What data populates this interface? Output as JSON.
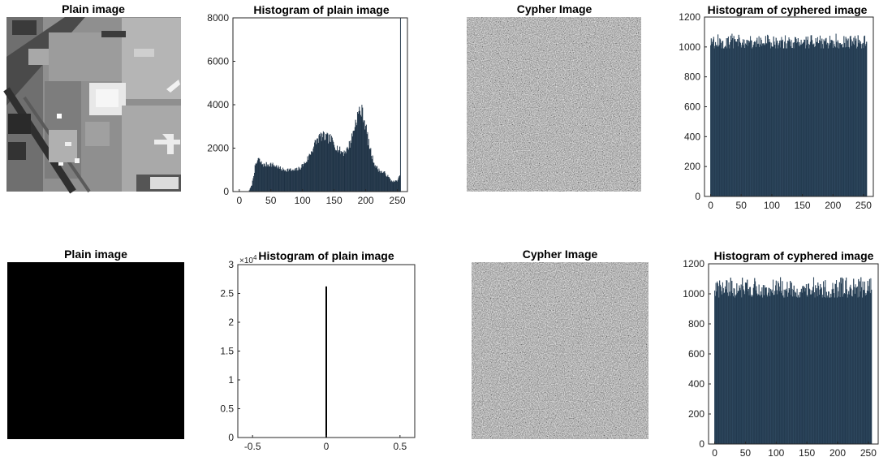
{
  "figure": {
    "panels": [
      {
        "kind": "image",
        "title": "Plain image",
        "content": "aerial-airport-grayscale-photo"
      },
      {
        "kind": "histogram",
        "title": "Histogram of plain image"
      },
      {
        "kind": "image",
        "title": "Cypher Image",
        "content": "random-noise"
      },
      {
        "kind": "histogram",
        "title": "Histogram of cyphered image"
      },
      {
        "kind": "image",
        "title": "Plain image",
        "content": "all-black"
      },
      {
        "kind": "histogram",
        "title": "Histogram of plain image"
      },
      {
        "kind": "image",
        "title": "Cypher Image",
        "content": "random-noise"
      },
      {
        "kind": "histogram",
        "title": "Histogram of cyphered image"
      }
    ],
    "colors": {
      "bar": "#1f3346",
      "axis": "#262626",
      "black_image": "#000000"
    }
  },
  "chart_data": [
    {
      "type": "bar",
      "title": "Histogram of plain image",
      "xlabel": "",
      "ylabel": "",
      "xlim": [
        -10,
        266
      ],
      "ylim": [
        0,
        8000
      ],
      "xticks": [
        0,
        50,
        100,
        150,
        200,
        250
      ],
      "yticks": [
        0,
        2000,
        4000,
        6000,
        8000
      ],
      "xtick_labels": [
        "0",
        "50",
        "100",
        "150",
        "200",
        "250"
      ],
      "ytick_labels": [
        "0",
        "2000",
        "4000",
        "6000",
        "8000"
      ],
      "grid": false,
      "bins": "0-255",
      "profile_x": [
        0,
        5,
        10,
        15,
        20,
        25,
        30,
        35,
        40,
        45,
        50,
        55,
        60,
        65,
        70,
        75,
        80,
        85,
        90,
        95,
        100,
        105,
        110,
        115,
        120,
        125,
        130,
        135,
        140,
        145,
        150,
        155,
        160,
        165,
        170,
        175,
        180,
        185,
        190,
        195,
        200,
        205,
        210,
        215,
        220,
        225,
        230,
        235,
        240,
        245,
        250,
        254,
        255
      ],
      "profile_y": [
        0,
        0,
        0,
        0,
        300,
        1100,
        1500,
        1300,
        1200,
        1250,
        1250,
        1200,
        1150,
        1050,
        1000,
        1000,
        1000,
        950,
        1000,
        1050,
        1200,
        1350,
        1600,
        1900,
        2200,
        2450,
        2550,
        2500,
        2450,
        2400,
        2200,
        2000,
        1850,
        1800,
        1900,
        2200,
        2700,
        3300,
        3700,
        3650,
        3000,
        2200,
        1600,
        1200,
        1000,
        900,
        850,
        700,
        500,
        450,
        500,
        700,
        8000
      ],
      "bar_color": "#1f3346"
    },
    {
      "type": "bar",
      "title": "Histogram of cyphered image",
      "xlabel": "",
      "ylabel": "",
      "xlim": [
        -10,
        266
      ],
      "ylim": [
        0,
        1200
      ],
      "xticks": [
        0,
        50,
        100,
        150,
        200,
        250
      ],
      "yticks": [
        0,
        200,
        400,
        600,
        800,
        1000,
        1200
      ],
      "xtick_labels": [
        "0",
        "50",
        "100",
        "150",
        "200",
        "250"
      ],
      "ytick_labels": [
        "0",
        "200",
        "400",
        "600",
        "800",
        "1000",
        "1200"
      ],
      "grid": false,
      "bins": "0-255",
      "value_range": [
        990,
        1090
      ],
      "mean": 1030,
      "bar_color": "#1f3346"
    },
    {
      "type": "bar",
      "title": "Histogram of plain image",
      "xlabel": "",
      "ylabel": "",
      "xlim": [
        -0.6,
        0.6
      ],
      "ylim": [
        0,
        30000
      ],
      "xticks": [
        -0.5,
        0,
        0.5
      ],
      "yticks": [
        0,
        5000,
        10000,
        15000,
        20000,
        25000,
        30000
      ],
      "xtick_labels": [
        "-0.5",
        "0",
        "0.5"
      ],
      "ytick_labels": [
        "0",
        "0.5",
        "1",
        "1.5",
        "2",
        "2.5",
        "3"
      ],
      "y_exponent_label": "×10",
      "y_exponent": "4",
      "grid": false,
      "x": [
        0
      ],
      "values": [
        26214
      ],
      "bar_color": "#000000"
    },
    {
      "type": "bar",
      "title": "Histogram of cyphered image",
      "xlabel": "",
      "ylabel": "",
      "xlim": [
        -10,
        266
      ],
      "ylim": [
        0,
        1200
      ],
      "xticks": [
        0,
        50,
        100,
        150,
        200,
        250
      ],
      "yticks": [
        0,
        200,
        400,
        600,
        800,
        1000,
        1200
      ],
      "xtick_labels": [
        "0",
        "50",
        "100",
        "150",
        "200",
        "250"
      ],
      "ytick_labels": [
        "0",
        "200",
        "400",
        "600",
        "800",
        "1000",
        "1200"
      ],
      "grid": false,
      "bins": "0-255",
      "value_range": [
        975,
        1110
      ],
      "mean": 1030,
      "bar_color": "#1f3346"
    }
  ]
}
